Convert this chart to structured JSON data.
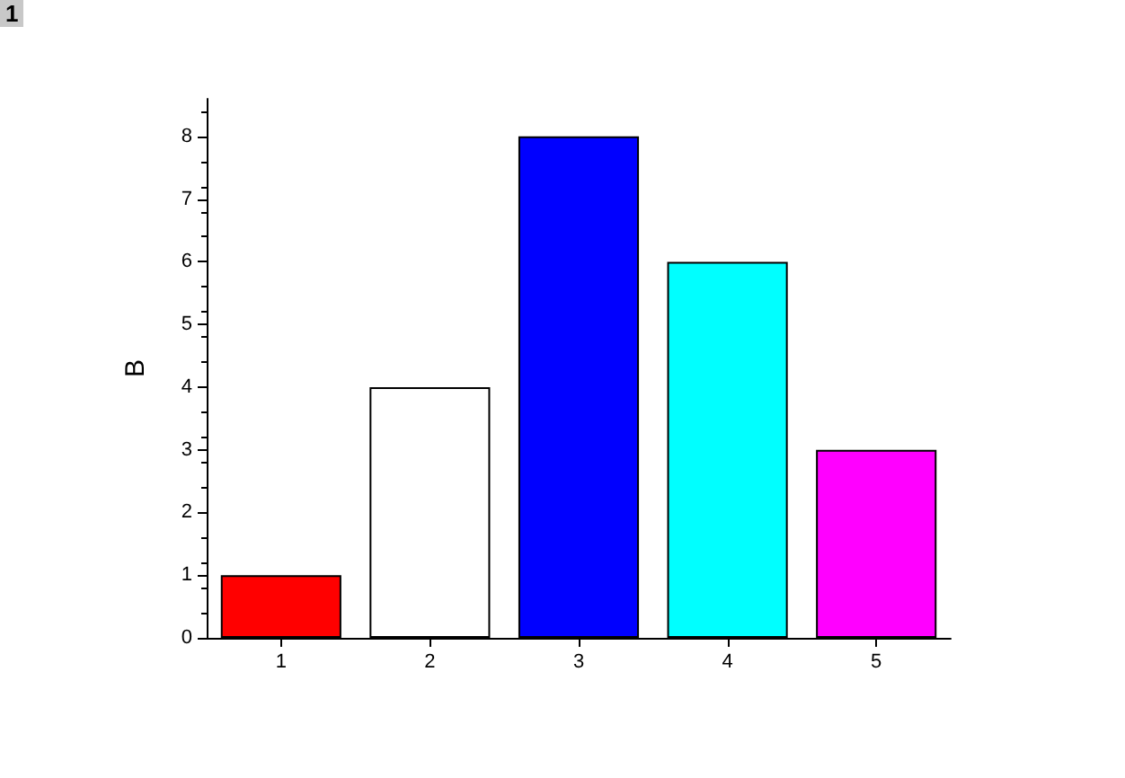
{
  "chart_data": {
    "type": "bar",
    "ylabel": "B",
    "categories": [
      "1",
      "2",
      "3",
      "4",
      "5"
    ],
    "values": [
      1,
      4,
      8,
      6,
      3
    ],
    "colors": [
      "#ff0000",
      "#ffffff",
      "#0000ff",
      "#00ffff",
      "#ff00ff"
    ],
    "ylim": [
      0,
      8.6
    ],
    "yticks": [
      0,
      1,
      2,
      3,
      4,
      5,
      6,
      7,
      8
    ],
    "annotations": [
      "1"
    ]
  }
}
